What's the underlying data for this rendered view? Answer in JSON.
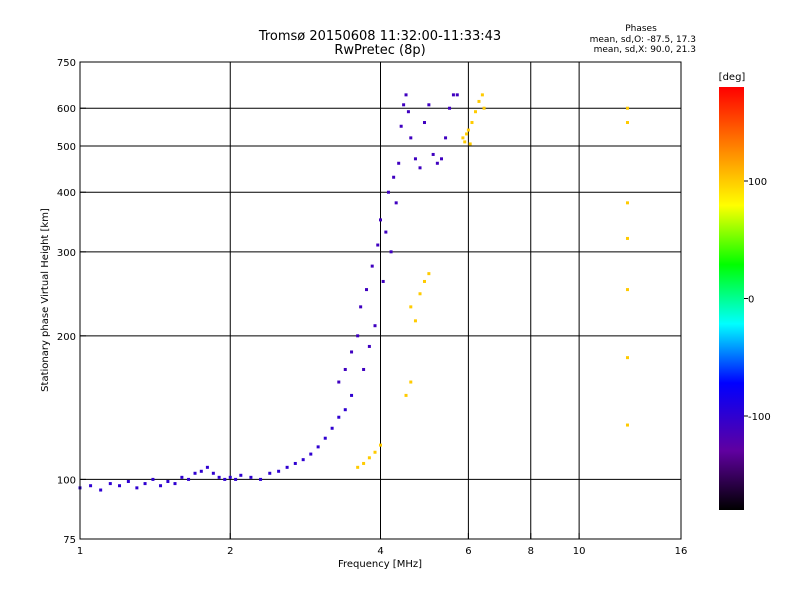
{
  "chart_data": {
    "type": "scatter",
    "title_line1": "Tromsø 20150608 11:32:00-11:33:43",
    "title_line2": "RwPretec (8p)",
    "phases_header": "Phases",
    "phases_o": "mean, sd,O: -87.5, 17.3",
    "phases_x": "mean, sd,X:  90.0, 21.3",
    "xlabel": "Frequency [MHz]",
    "ylabel": "Stationary phase Virtual Height [km]",
    "x_scale": "log",
    "y_scale": "log",
    "xlim": [
      1,
      16
    ],
    "ylim": [
      75,
      750
    ],
    "x_ticks": [
      {
        "v": 1,
        "label": "1"
      },
      {
        "v": 2,
        "label": "2"
      },
      {
        "v": 4,
        "label": "4"
      },
      {
        "v": 6,
        "label": "6"
      },
      {
        "v": 8,
        "label": "8"
      },
      {
        "v": 10,
        "label": "10"
      },
      {
        "v": 16,
        "label": "16"
      }
    ],
    "y_ticks": [
      {
        "v": 75,
        "label": "75"
      },
      {
        "v": 100,
        "label": "100"
      },
      {
        "v": 200,
        "label": "200"
      },
      {
        "v": 300,
        "label": "300"
      },
      {
        "v": 400,
        "label": "400"
      },
      {
        "v": 500,
        "label": "500"
      },
      {
        "v": 600,
        "label": "600"
      },
      {
        "v": 750,
        "label": "750"
      }
    ],
    "grid_x": [
      2,
      4,
      6,
      8,
      10
    ],
    "grid_y": [
      100,
      200,
      300,
      400,
      500,
      600
    ],
    "grid": true,
    "colorbar": {
      "label": "[deg]",
      "min": -180,
      "max": 180,
      "ticks": [
        {
          "v": 100,
          "label": "100"
        },
        {
          "v": 0,
          "label": "0"
        },
        {
          "v": -100,
          "label": "-100"
        }
      ]
    },
    "series": [
      {
        "values": [
          [
            1.0,
            96
          ],
          [
            1.05,
            97
          ],
          [
            1.1,
            95
          ],
          [
            1.15,
            98
          ],
          [
            1.2,
            97
          ],
          [
            1.25,
            99
          ],
          [
            1.3,
            96
          ],
          [
            1.35,
            98
          ],
          [
            1.4,
            100
          ],
          [
            1.45,
            97
          ],
          [
            1.5,
            99
          ],
          [
            1.55,
            98
          ],
          [
            1.6,
            101
          ],
          [
            1.65,
            100
          ],
          [
            1.7,
            103
          ],
          [
            1.75,
            104
          ],
          [
            1.8,
            106
          ],
          [
            1.85,
            103
          ],
          [
            1.9,
            101
          ],
          [
            1.95,
            100
          ],
          [
            2.0,
            101
          ],
          [
            2.05,
            100
          ],
          [
            2.1,
            102
          ],
          [
            2.2,
            101
          ],
          [
            2.3,
            100
          ],
          [
            2.4,
            103
          ],
          [
            2.5,
            104
          ],
          [
            2.6,
            106
          ],
          [
            2.7,
            108
          ],
          [
            2.8,
            110
          ],
          [
            2.9,
            113
          ],
          [
            3.0,
            117
          ],
          [
            3.1,
            122
          ],
          [
            3.2,
            128
          ],
          [
            3.3,
            135
          ],
          [
            3.4,
            140
          ],
          [
            3.5,
            150
          ]
        ],
        "phase": -100
      },
      {
        "values": [
          [
            3.6,
            200
          ],
          [
            3.65,
            230
          ],
          [
            3.7,
            170
          ],
          [
            3.75,
            250
          ],
          [
            3.8,
            190
          ],
          [
            3.85,
            280
          ],
          [
            3.9,
            210
          ],
          [
            3.95,
            310
          ],
          [
            4.0,
            350
          ],
          [
            4.05,
            260
          ],
          [
            4.1,
            330
          ],
          [
            4.15,
            400
          ],
          [
            4.2,
            300
          ],
          [
            4.25,
            430
          ],
          [
            4.3,
            380
          ],
          [
            4.35,
            460
          ],
          [
            4.4,
            550
          ],
          [
            4.45,
            610
          ],
          [
            4.5,
            640
          ],
          [
            4.55,
            590
          ],
          [
            4.6,
            520
          ],
          [
            4.7,
            470
          ],
          [
            4.8,
            450
          ],
          [
            4.9,
            560
          ],
          [
            5.0,
            610
          ],
          [
            5.1,
            480
          ],
          [
            5.2,
            460
          ],
          [
            5.3,
            470
          ],
          [
            5.4,
            520
          ],
          [
            5.5,
            600
          ],
          [
            5.6,
            640
          ],
          [
            5.7,
            640
          ],
          [
            3.3,
            160
          ],
          [
            3.4,
            170
          ],
          [
            3.5,
            185
          ]
        ],
        "phase": -110
      },
      {
        "values": [
          [
            5.85,
            520
          ],
          [
            5.9,
            510
          ],
          [
            5.95,
            530
          ],
          [
            6.0,
            540
          ],
          [
            6.05,
            505
          ],
          [
            6.1,
            560
          ],
          [
            6.2,
            590
          ],
          [
            6.3,
            620
          ],
          [
            6.4,
            640
          ],
          [
            6.45,
            600
          ],
          [
            3.6,
            106
          ],
          [
            3.7,
            108
          ],
          [
            3.8,
            111
          ],
          [
            3.9,
            114
          ],
          [
            4.0,
            118
          ],
          [
            4.6,
            230
          ],
          [
            4.7,
            215
          ],
          [
            4.8,
            245
          ],
          [
            4.9,
            260
          ],
          [
            5.0,
            270
          ],
          [
            4.5,
            150
          ],
          [
            4.6,
            160
          ],
          [
            12.5,
            130
          ],
          [
            12.5,
            180
          ],
          [
            12.5,
            250
          ],
          [
            12.5,
            320
          ],
          [
            12.5,
            380
          ],
          [
            12.5,
            560
          ],
          [
            12.5,
            600
          ]
        ],
        "phase": 100
      }
    ]
  }
}
